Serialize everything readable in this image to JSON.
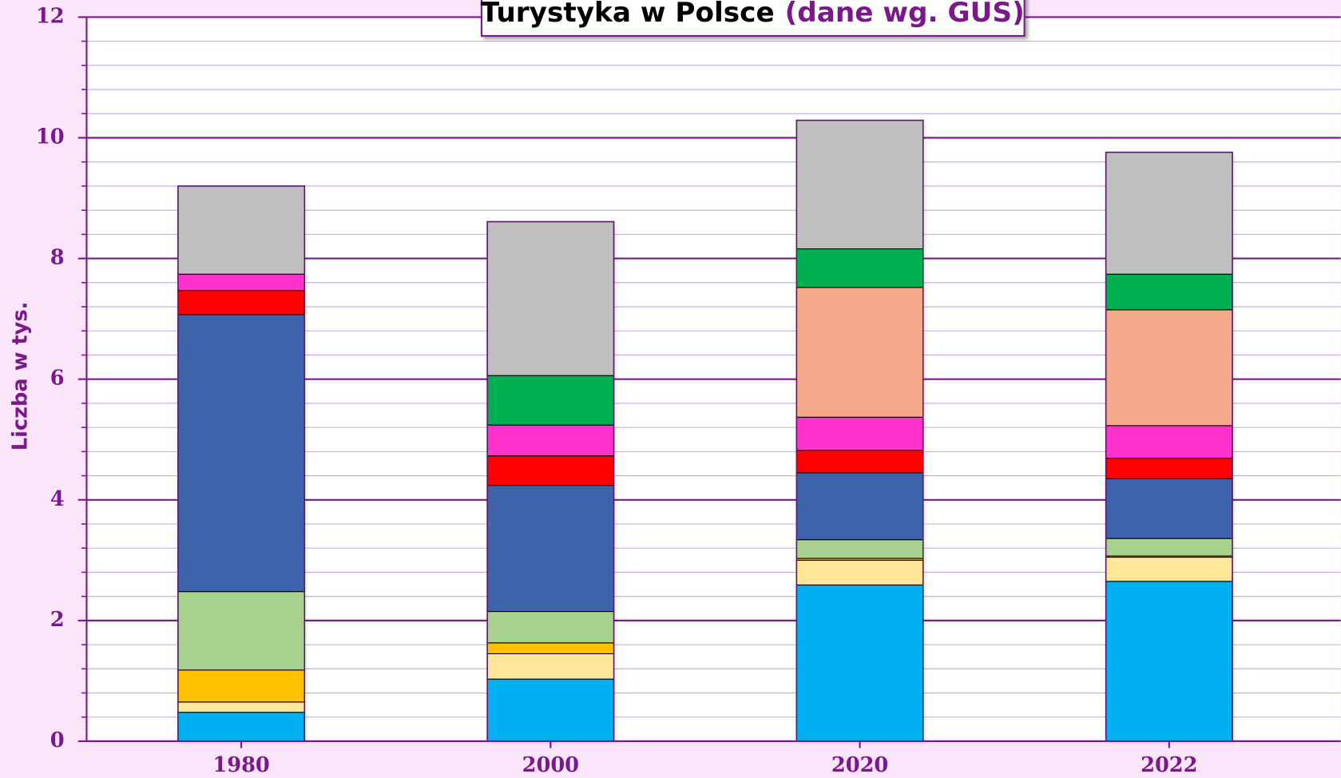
{
  "chart_data": {
    "type": "stacked_bar",
    "title": "Turystyka w Polsce",
    "subtitle": "(dane wg. GUS)",
    "y_label": "Liczba w tys.",
    "categories": [
      "1980",
      "2000",
      "2020",
      "2022"
    ],
    "series": [
      {
        "color": "#00b0f0",
        "values": [
          0.48,
          1.03,
          2.59,
          2.65
        ]
      },
      {
        "color": "#ffe699",
        "values": [
          0.17,
          0.42,
          0.41,
          0.4
        ]
      },
      {
        "color": "#ffc000",
        "values": [
          0.53,
          0.18,
          0.03,
          0.02
        ]
      },
      {
        "color": "#a9d18e",
        "values": [
          1.3,
          0.52,
          0.31,
          0.29
        ]
      },
      {
        "color": "#3d64ab",
        "values": [
          4.59,
          2.09,
          1.11,
          0.99
        ]
      },
      {
        "color": "#ff0000",
        "values": [
          0.4,
          0.49,
          0.37,
          0.34
        ]
      },
      {
        "color": "#ff33cc",
        "values": [
          0.27,
          0.51,
          0.55,
          0.54
        ]
      },
      {
        "color": "#f4a98a",
        "values": [
          0,
          0,
          2.15,
          1.92
        ]
      },
      {
        "color": "#00b050",
        "values": [
          0,
          0.82,
          0.64,
          0.59
        ]
      },
      {
        "color": "#bfbfbf",
        "values": [
          1.46,
          2.55,
          2.13,
          2.02
        ]
      }
    ],
    "ylim": [
      0,
      12
    ],
    "yticks": [
      0,
      2,
      4,
      6,
      8,
      10,
      12
    ],
    "grid": true
  }
}
